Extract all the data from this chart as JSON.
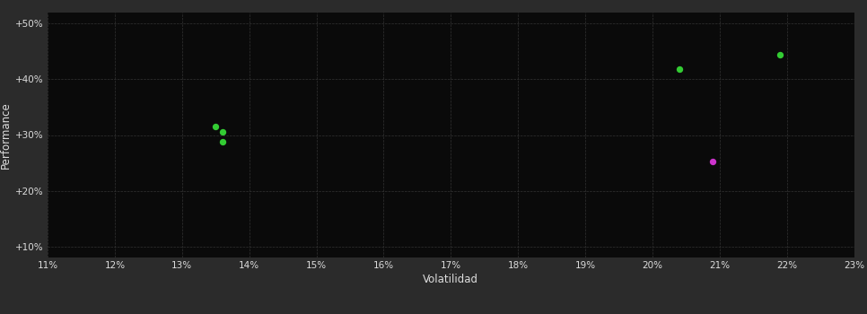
{
  "background_color": "#2b2b2b",
  "plot_bg_color": "#0a0a0a",
  "grid_color": "#333333",
  "text_color": "#dddddd",
  "xlabel": "Volatilidad",
  "ylabel": "Performance",
  "xlim": [
    0.11,
    0.23
  ],
  "ylim": [
    0.08,
    0.52
  ],
  "xticks": [
    0.11,
    0.12,
    0.13,
    0.14,
    0.15,
    0.16,
    0.17,
    0.18,
    0.19,
    0.2,
    0.21,
    0.22,
    0.23
  ],
  "yticks": [
    0.1,
    0.2,
    0.3,
    0.4,
    0.5
  ],
  "ytick_labels": [
    "+10%",
    "+20%",
    "+30%",
    "+40%",
    "+50%"
  ],
  "green_points": [
    [
      0.135,
      0.315
    ],
    [
      0.136,
      0.306
    ],
    [
      0.136,
      0.288
    ],
    [
      0.204,
      0.418
    ],
    [
      0.219,
      0.444
    ]
  ],
  "purple_points": [
    [
      0.209,
      0.252
    ]
  ],
  "green_color": "#33cc33",
  "purple_color": "#cc33cc",
  "marker_size": 28
}
